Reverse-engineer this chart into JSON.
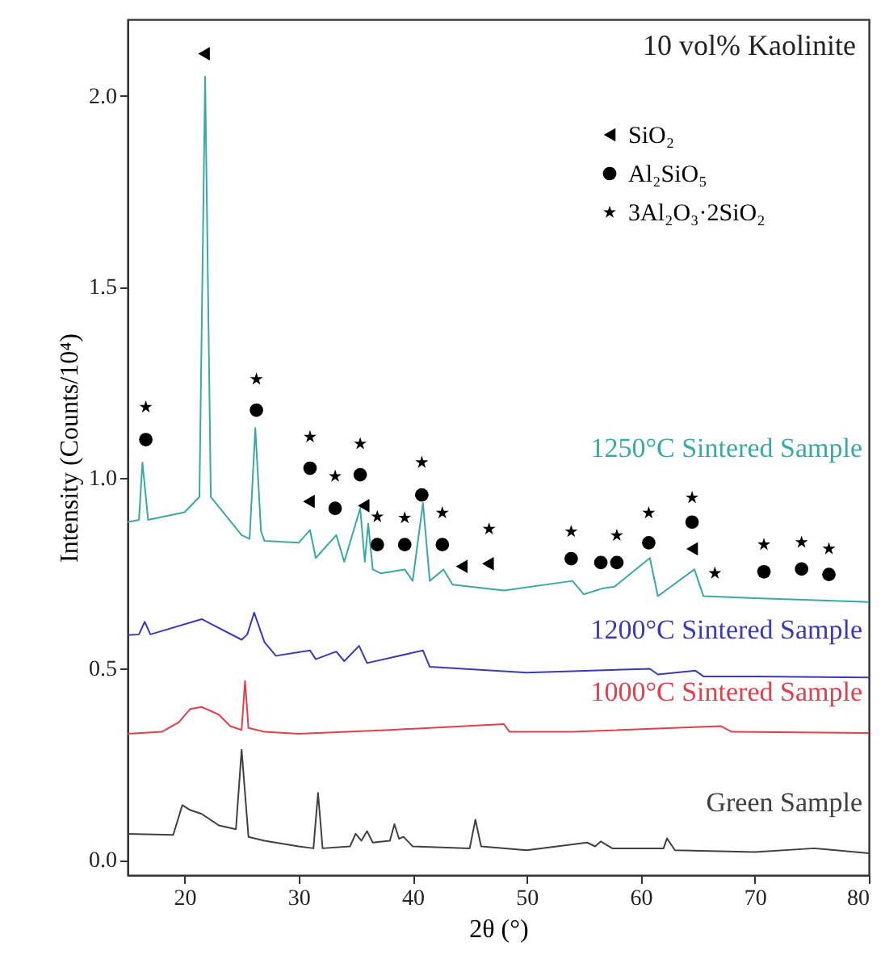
{
  "chart_data": {
    "type": "line",
    "annotations": [
      "10 vol% Kaolinite"
    ],
    "xlabel": "2θ (°)",
    "ylabel": "Intensity (Counts/10⁴)",
    "xlim": [
      15,
      80
    ],
    "ylim": [
      -0.04,
      2.2
    ],
    "xticks": [
      20,
      30,
      40,
      50,
      60,
      70,
      80
    ],
    "yticks": [
      {
        "value": 0,
        "label": "0.0"
      },
      {
        "value": 0.5,
        "label": "0.5"
      },
      {
        "value": 1,
        "label": "1.0"
      },
      {
        "value": 1.5,
        "label": "1.5"
      },
      {
        "value": 2,
        "label": "2.0"
      }
    ],
    "legend": "top right",
    "grid": false,
    "series": [
      {
        "name": "1250°C Sintered Sample",
        "color": "#3ba8a4",
        "x": [
          15,
          16,
          16.3,
          16.8,
          20,
          21.3,
          21.8,
          22.3,
          25,
          25.7,
          26.2,
          26.7,
          27,
          30,
          31,
          31.5,
          33.3,
          34,
          35.4,
          35.8,
          36.1,
          36.5,
          37.2,
          39.3,
          40,
          40.9,
          41.5,
          42.7,
          43.5,
          48,
          54,
          55,
          56.6,
          57.7,
          60.8,
          61.5,
          64.7,
          65.5,
          70,
          80
        ],
        "values": [
          0.884,
          0.89,
          1.04,
          0.89,
          0.91,
          0.95,
          2.05,
          0.95,
          0.85,
          0.84,
          1.13,
          0.86,
          0.835,
          0.83,
          0.863,
          0.79,
          0.85,
          0.78,
          0.92,
          0.78,
          0.88,
          0.76,
          0.75,
          0.76,
          0.73,
          0.934,
          0.73,
          0.76,
          0.72,
          0.705,
          0.73,
          0.695,
          0.71,
          0.715,
          0.79,
          0.69,
          0.76,
          0.69,
          0.685,
          0.675
        ]
      },
      {
        "name": "1200°C Sintered Sample",
        "color": "#3a3ab4",
        "x": [
          15,
          16,
          16.5,
          17,
          21.5,
          25,
          25.5,
          26.1,
          27,
          28,
          31,
          31.5,
          33.3,
          34,
          35.3,
          36,
          40.9,
          41.5,
          50,
          60.8,
          61.5,
          64.8,
          65.5,
          70,
          80
        ],
        "values": [
          0.588,
          0.59,
          0.623,
          0.59,
          0.63,
          0.576,
          0.59,
          0.647,
          0.57,
          0.534,
          0.548,
          0.525,
          0.545,
          0.52,
          0.56,
          0.515,
          0.548,
          0.505,
          0.49,
          0.5,
          0.485,
          0.495,
          0.48,
          0.48,
          0.477
        ]
      },
      {
        "name": "1000°C Sintered Sample",
        "color": "#e0404c",
        "x": [
          15,
          18,
          19.5,
          20.5,
          21.5,
          23,
          24,
          25,
          25.3,
          25.6,
          27,
          30,
          38,
          48,
          48.5,
          54,
          67,
          68,
          80
        ],
        "values": [
          0.33,
          0.335,
          0.36,
          0.395,
          0.4,
          0.38,
          0.35,
          0.34,
          0.468,
          0.345,
          0.335,
          0.33,
          0.34,
          0.355,
          0.335,
          0.335,
          0.35,
          0.335,
          0.332
        ]
      },
      {
        "name": "Green Sample",
        "color": "#404040",
        "x": [
          15,
          19,
          19.8,
          20.5,
          21.5,
          23,
          24.5,
          25,
          25.6,
          27,
          30,
          31.3,
          31.7,
          32.1,
          34.5,
          35,
          35.5,
          36,
          36.5,
          38,
          38.4,
          38.8,
          39.2,
          40,
          45,
          45.5,
          46,
          50,
          55.3,
          56,
          56.5,
          57.5,
          62,
          62.3,
          63,
          70,
          75.2,
          80
        ],
        "values": [
          0.068,
          0.065,
          0.143,
          0.13,
          0.12,
          0.09,
          0.08,
          0.288,
          0.06,
          0.05,
          0.035,
          0.03,
          0.175,
          0.03,
          0.035,
          0.068,
          0.05,
          0.075,
          0.045,
          0.05,
          0.093,
          0.055,
          0.06,
          0.035,
          0.03,
          0.105,
          0.035,
          0.025,
          0.045,
          0.035,
          0.048,
          0.03,
          0.03,
          0.056,
          0.025,
          0.02,
          0.03,
          0.017
        ]
      },
      {
        "name": "SiO₂",
        "type": "scatter",
        "marker": "triangle",
        "color": "#000000",
        "x": [
          21.7,
          30.9,
          35.7,
          44.3,
          46.6,
          64.5
        ],
        "values": [
          2.11,
          0.938,
          0.927,
          0.768,
          0.775,
          0.814
        ]
      },
      {
        "name": "Al₂SiO₅",
        "type": "scatter",
        "marker": "circle",
        "color": "#000000",
        "x": [
          16.6,
          26.3,
          31,
          33.2,
          35.4,
          36.9,
          39.3,
          40.8,
          42.6,
          53.9,
          56.5,
          57.9,
          60.7,
          64.5,
          70.8,
          74.1,
          76.5
        ],
        "values": [
          1.1,
          1.177,
          1.025,
          0.92,
          1.008,
          0.825,
          0.825,
          0.955,
          0.825,
          0.788,
          0.778,
          0.778,
          0.83,
          0.884,
          0.754,
          0.761,
          0.747
        ]
      },
      {
        "name": "3Al₂O₃·2SiO₂",
        "type": "scatter",
        "marker": "star",
        "color": "#000000",
        "x": [
          16.6,
          26.3,
          31,
          33.2,
          35.4,
          36.9,
          39.3,
          40.8,
          42.6,
          46.7,
          53.9,
          57.9,
          60.7,
          64.5,
          66.5,
          70.8,
          74.1,
          76.5
        ],
        "values": [
          1.185,
          1.258,
          1.107,
          1.004,
          1.089,
          0.898,
          0.895,
          1.04,
          0.908,
          0.866,
          0.859,
          0.849,
          0.908,
          0.948,
          0.75,
          0.825,
          0.831,
          0.814
        ]
      }
    ]
  }
}
